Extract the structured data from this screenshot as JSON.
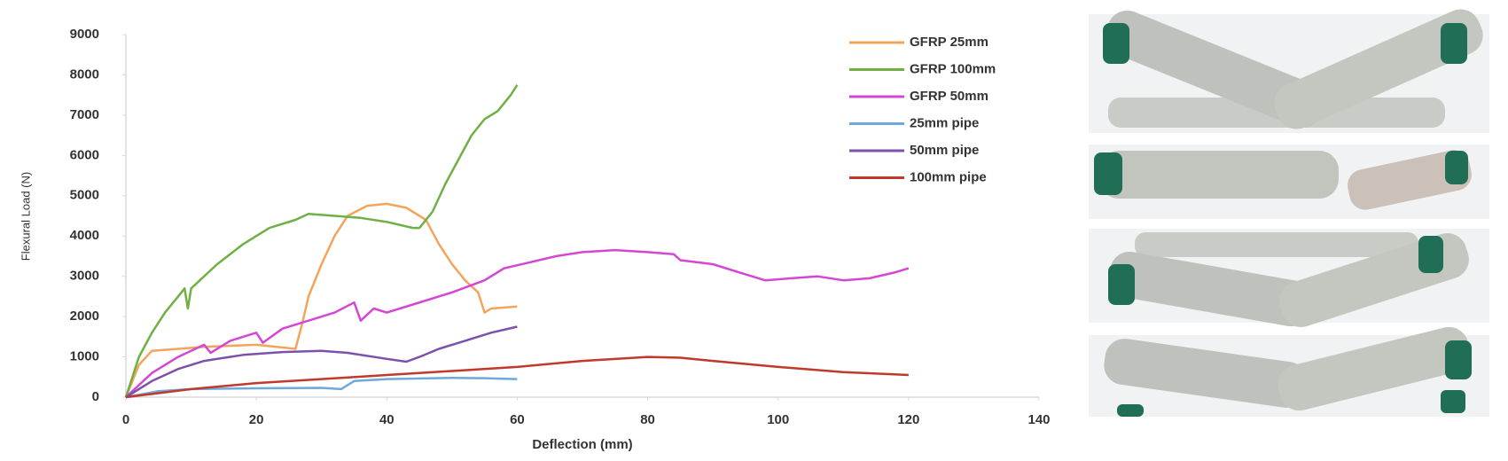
{
  "chart_data": {
    "type": "line",
    "title": null,
    "xlabel": "Deflection (mm)",
    "ylabel": "Flexural Load (N)",
    "xlim": [
      0,
      140
    ],
    "xticks": [
      0,
      20,
      40,
      60,
      80,
      100,
      120,
      140
    ],
    "ylim": [
      0,
      9000
    ],
    "yticks": [
      0,
      1000,
      2000,
      3000,
      4000,
      5000,
      6000,
      7000,
      8000,
      9000
    ],
    "grid": false,
    "legend": "upper right",
    "series": [
      {
        "name": "GFRP 25mm",
        "color": "#f4a45a",
        "x": [
          0,
          2,
          4,
          8,
          12,
          20,
          26,
          27,
          28,
          30,
          32,
          34,
          37,
          40,
          43,
          46,
          48,
          50,
          52,
          54,
          55,
          56,
          60
        ],
        "values": [
          0,
          800,
          1150,
          1200,
          1250,
          1300,
          1200,
          1800,
          2500,
          3300,
          4000,
          4500,
          4750,
          4800,
          4700,
          4400,
          3800,
          3300,
          2900,
          2600,
          2100,
          2200,
          2250
        ]
      },
      {
        "name": "GFRP 100mm",
        "color": "#6fb044",
        "x": [
          0,
          2,
          4,
          6,
          8,
          9,
          9.5,
          10,
          14,
          18,
          22,
          26,
          28,
          32,
          36,
          40,
          44,
          45,
          47,
          49,
          51,
          53,
          55,
          57,
          59,
          60
        ],
        "values": [
          0,
          1000,
          1600,
          2100,
          2500,
          2700,
          2200,
          2700,
          3300,
          3800,
          4200,
          4400,
          4550,
          4500,
          4450,
          4350,
          4200,
          4200,
          4600,
          5300,
          5900,
          6500,
          6900,
          7100,
          7500,
          7750
        ]
      },
      {
        "name": "GFRP 50mm",
        "color": "#d447d4",
        "x": [
          0,
          4,
          8,
          12,
          13,
          16,
          20,
          21,
          24,
          28,
          32,
          35,
          36,
          38,
          40,
          44,
          50,
          55,
          58,
          62,
          66,
          70,
          75,
          80,
          84,
          85,
          90,
          95,
          98,
          102,
          106,
          110,
          114,
          118,
          120
        ],
        "values": [
          0,
          600,
          1000,
          1300,
          1100,
          1400,
          1600,
          1350,
          1700,
          1900,
          2100,
          2350,
          1900,
          2200,
          2100,
          2300,
          2600,
          2900,
          3200,
          3350,
          3500,
          3600,
          3650,
          3600,
          3550,
          3400,
          3300,
          3050,
          2900,
          2950,
          3000,
          2900,
          2950,
          3100,
          3200
        ]
      },
      {
        "name": "25mm pipe",
        "color": "#6fa8dc",
        "x": [
          0,
          5,
          10,
          20,
          30,
          33,
          35,
          40,
          50,
          55,
          60
        ],
        "values": [
          0,
          150,
          200,
          220,
          230,
          200,
          400,
          450,
          480,
          470,
          450
        ]
      },
      {
        "name": "50mm pipe",
        "color": "#7b52ab",
        "x": [
          0,
          4,
          8,
          12,
          18,
          24,
          30,
          34,
          40,
          43,
          45,
          48,
          52,
          56,
          60
        ],
        "values": [
          0,
          400,
          700,
          900,
          1050,
          1120,
          1150,
          1100,
          950,
          880,
          1000,
          1200,
          1400,
          1600,
          1750
        ]
      },
      {
        "name": "100mm pipe",
        "color": "#c0392b",
        "x": [
          0,
          10,
          20,
          30,
          40,
          50,
          60,
          70,
          80,
          85,
          90,
          100,
          110,
          120
        ],
        "values": [
          0,
          200,
          350,
          450,
          550,
          650,
          750,
          900,
          1000,
          980,
          900,
          750,
          620,
          550
        ]
      }
    ]
  }
}
